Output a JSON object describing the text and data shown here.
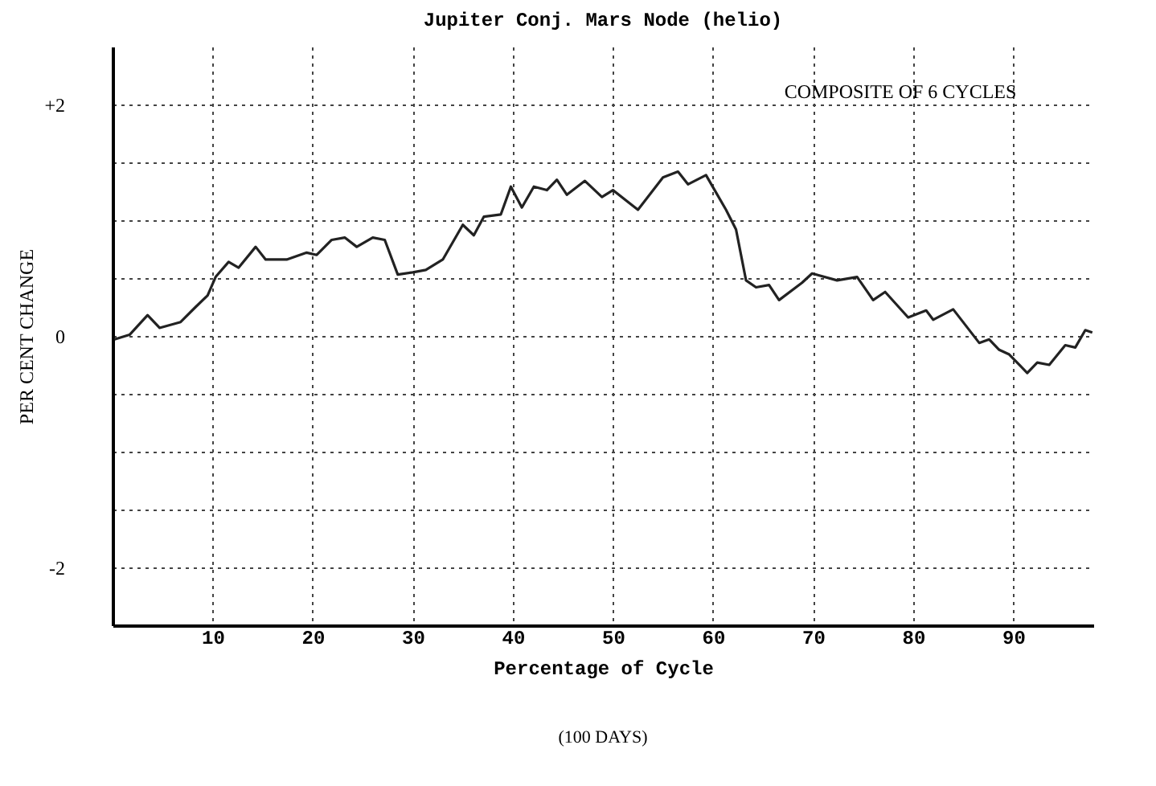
{
  "chart_data": {
    "type": "line",
    "title": "Jupiter      Conj. Mars Node (helio)",
    "xlabel": "Percentage of Cycle",
    "ylabel": "PER CENT CHANGE",
    "annotations": [
      "COMPOSITE OF 6 CYCLES",
      "(100 DAYS)"
    ],
    "xlim": [
      0,
      98
    ],
    "ylim": [
      -2.5,
      2.5
    ],
    "xticks": [
      10,
      20,
      30,
      40,
      50,
      60,
      70,
      80,
      90
    ],
    "yticks": [
      {
        "value": -2,
        "label": "-2"
      },
      {
        "value": -1.5,
        "label": null
      },
      {
        "value": -1,
        "label": null
      },
      {
        "value": -0.5,
        "label": null
      },
      0,
      {
        "value": 0.5,
        "label": null
      },
      {
        "value": 1,
        "label": null
      },
      {
        "value": 1.5,
        "label": null
      },
      {
        "value": 2,
        "label": "+2"
      }
    ],
    "grid": true,
    "line_style": "solid",
    "marker": "none",
    "series": [
      {
        "color": "#222222",
        "x": [
          0.2,
          1.7,
          3.5,
          4.7,
          6.8,
          8.3,
          9.5,
          10.3,
          11.6,
          12.6,
          14.3,
          15.3,
          17.4,
          19.4,
          20.4,
          21.9,
          23.2,
          24.4,
          26.0,
          27.2,
          28.5,
          30.0,
          31.3,
          33.0,
          35.0,
          36.1,
          37.1,
          38.8,
          39.8,
          40.9,
          42.1,
          43.4,
          44.4,
          45.4,
          47.2,
          48.9,
          50.0,
          52.5,
          55.0,
          56.5,
          57.5,
          59.3,
          61.3,
          62.3,
          63.3,
          64.3,
          65.6,
          66.6,
          68.9,
          69.9,
          72.4,
          74.4,
          76.0,
          77.2,
          79.5,
          81.3,
          82.0,
          84.0,
          86.6,
          87.6,
          88.6,
          89.6,
          91.4,
          92.4,
          93.6,
          95.2,
          96.2,
          97.2,
          97.9
        ],
        "values": [
          -0.03,
          0.01,
          0.18,
          0.07,
          0.12,
          0.25,
          0.35,
          0.51,
          0.64,
          0.59,
          0.77,
          0.66,
          0.66,
          0.72,
          0.7,
          0.83,
          0.85,
          0.77,
          0.85,
          0.83,
          0.53,
          0.55,
          0.57,
          0.66,
          0.96,
          0.87,
          1.03,
          1.05,
          1.29,
          1.11,
          1.29,
          1.26,
          1.35,
          1.22,
          1.34,
          1.2,
          1.26,
          1.09,
          1.37,
          1.42,
          1.31,
          1.39,
          1.09,
          0.92,
          0.48,
          0.42,
          0.44,
          0.31,
          0.46,
          0.54,
          0.48,
          0.51,
          0.31,
          0.38,
          0.16,
          0.22,
          0.14,
          0.23,
          -0.06,
          -0.03,
          -0.12,
          -0.16,
          -0.32,
          -0.23,
          -0.25,
          -0.08,
          -0.1,
          0.05,
          0.03
        ]
      }
    ]
  }
}
